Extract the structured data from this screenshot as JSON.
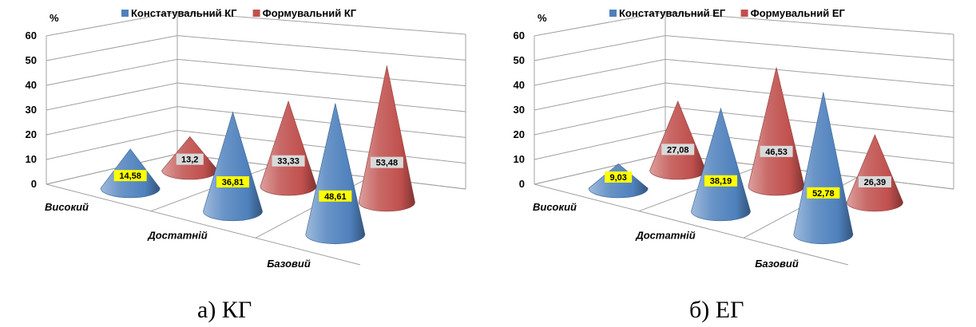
{
  "chart_data": [
    {
      "type": "bar",
      "subtype": "3d-cone",
      "caption": "а) КГ",
      "ylabel": "%",
      "ylim": [
        0,
        60
      ],
      "yticks": [
        0,
        10,
        20,
        30,
        40,
        50,
        60
      ],
      "grid": true,
      "legend_position": "top",
      "categories": [
        "Високий",
        "Достатній",
        "Базовий"
      ],
      "series": [
        {
          "name": "Констатувальний КГ",
          "color": "#4F81BD",
          "values": [
            14.58,
            36.81,
            48.61
          ],
          "labels": [
            "14,58",
            "36,81",
            "48,61"
          ],
          "label_bg": "#FFFF00"
        },
        {
          "name": "Формувальний КГ",
          "color": "#C0504D",
          "values": [
            13.2,
            33.33,
            53.48
          ],
          "labels": [
            "13,2",
            "33,33",
            "53,48"
          ],
          "label_bg": "#D9D9D9"
        }
      ]
    },
    {
      "type": "bar",
      "subtype": "3d-cone",
      "caption": "б) ЕГ",
      "ylabel": "%",
      "ylim": [
        0,
        60
      ],
      "yticks": [
        0,
        10,
        20,
        30,
        40,
        50,
        60
      ],
      "grid": true,
      "legend_position": "top",
      "categories": [
        "Високий",
        "Достатній",
        "Базовий"
      ],
      "series": [
        {
          "name": "Констатувальний ЕГ",
          "color": "#4F81BD",
          "values": [
            9.03,
            38.19,
            52.78
          ],
          "labels": [
            "9,03",
            "38,19",
            "52,78"
          ],
          "label_bg": "#FFFF00"
        },
        {
          "name": "Формувальний ЕГ",
          "color": "#C0504D",
          "values": [
            27.08,
            46.53,
            26.39
          ],
          "labels": [
            "27,08",
            "46,53",
            "26,39"
          ],
          "label_bg": "#D9D9D9"
        }
      ]
    }
  ]
}
